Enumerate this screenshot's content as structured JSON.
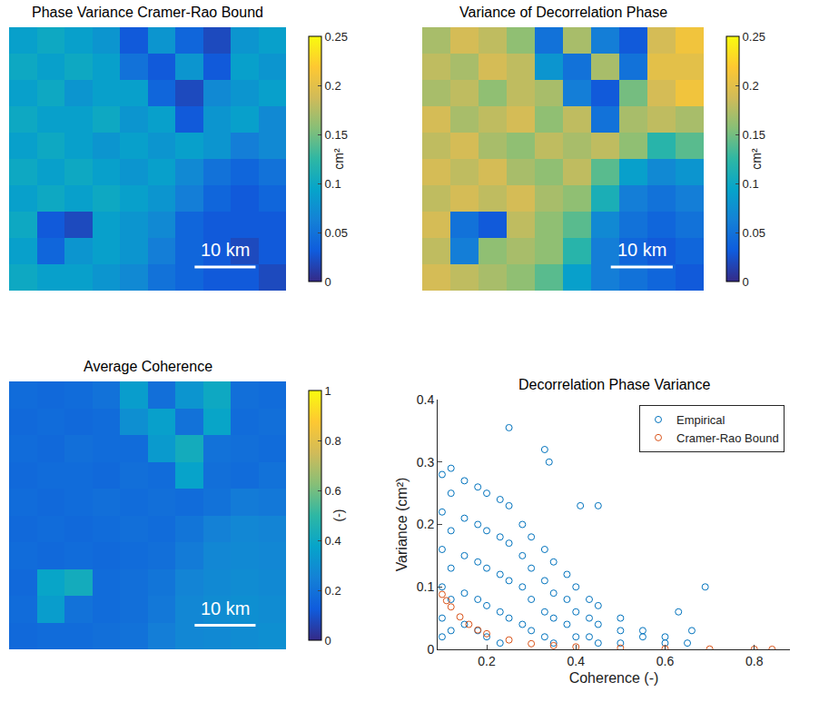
{
  "chart_data": [
    {
      "type": "heatmap",
      "title": "Phase Variance Cramer-Rao Bound",
      "tick_labels": false,
      "colorbar_range": [
        0,
        0.25
      ],
      "colorbar_ticks": [
        0,
        0.05,
        0.1,
        0.15,
        0.2,
        0.25
      ],
      "colorbar_label": "cm²",
      "annotations": [
        "10 km"
      ],
      "cells": [
        [
          0.09,
          0.1,
          0.09,
          0.08,
          0.03,
          0.08,
          0.04,
          0.02,
          0.08,
          0.09
        ],
        [
          0.1,
          0.09,
          0.1,
          0.09,
          0.05,
          0.03,
          0.08,
          0.03,
          0.09,
          0.08
        ],
        [
          0.09,
          0.1,
          0.08,
          0.09,
          0.09,
          0.04,
          0.02,
          0.07,
          0.08,
          0.09
        ],
        [
          0.1,
          0.09,
          0.09,
          0.1,
          0.08,
          0.09,
          0.03,
          0.08,
          0.09,
          0.07
        ],
        [
          0.09,
          0.1,
          0.09,
          0.08,
          0.09,
          0.08,
          0.09,
          0.08,
          0.06,
          0.07
        ],
        [
          0.1,
          0.09,
          0.1,
          0.09,
          0.08,
          0.09,
          0.07,
          0.05,
          0.04,
          0.05
        ],
        [
          0.09,
          0.1,
          0.09,
          0.1,
          0.09,
          0.08,
          0.06,
          0.04,
          0.03,
          0.04
        ],
        [
          0.1,
          0.03,
          0.02,
          0.09,
          0.08,
          0.07,
          0.04,
          0.03,
          0.03,
          0.03
        ],
        [
          0.09,
          0.04,
          0.08,
          0.09,
          0.08,
          0.06,
          0.04,
          0.03,
          0.02,
          0.03
        ],
        [
          0.1,
          0.09,
          0.09,
          0.08,
          0.07,
          0.05,
          0.04,
          0.03,
          0.03,
          0.02
        ]
      ]
    },
    {
      "type": "heatmap",
      "title": "Variance of Decorrelation Phase",
      "tick_labels": false,
      "colorbar_range": [
        0,
        0.25
      ],
      "colorbar_ticks": [
        0,
        0.05,
        0.1,
        0.15,
        0.2,
        0.25
      ],
      "colorbar_label": "cm²",
      "annotations": [
        "10 km"
      ],
      "cells": [
        [
          0.17,
          0.19,
          0.18,
          0.16,
          0.05,
          0.17,
          0.06,
          0.03,
          0.19,
          0.21
        ],
        [
          0.18,
          0.17,
          0.19,
          0.18,
          0.08,
          0.05,
          0.17,
          0.05,
          0.2,
          0.2
        ],
        [
          0.17,
          0.18,
          0.16,
          0.18,
          0.17,
          0.06,
          0.03,
          0.15,
          0.19,
          0.21
        ],
        [
          0.19,
          0.17,
          0.18,
          0.19,
          0.16,
          0.18,
          0.05,
          0.17,
          0.18,
          0.17
        ],
        [
          0.18,
          0.19,
          0.17,
          0.16,
          0.18,
          0.17,
          0.18,
          0.16,
          0.12,
          0.14
        ],
        [
          0.19,
          0.18,
          0.19,
          0.17,
          0.16,
          0.18,
          0.14,
          0.09,
          0.07,
          0.08
        ],
        [
          0.18,
          0.19,
          0.18,
          0.19,
          0.17,
          0.16,
          0.11,
          0.06,
          0.05,
          0.06
        ],
        [
          0.19,
          0.05,
          0.03,
          0.18,
          0.16,
          0.14,
          0.07,
          0.05,
          0.04,
          0.05
        ],
        [
          0.18,
          0.06,
          0.16,
          0.17,
          0.16,
          0.12,
          0.06,
          0.04,
          0.03,
          0.04
        ],
        [
          0.19,
          0.18,
          0.17,
          0.16,
          0.14,
          0.09,
          0.06,
          0.05,
          0.04,
          0.03
        ]
      ]
    },
    {
      "type": "heatmap",
      "title": "Average Coherence",
      "tick_labels": false,
      "colorbar_range": [
        0,
        1
      ],
      "colorbar_ticks": [
        0,
        0.2,
        0.4,
        0.6,
        0.8,
        1
      ],
      "colorbar_label": "(-)",
      "annotations": [
        "10 km"
      ],
      "cells": [
        [
          0.18,
          0.17,
          0.18,
          0.2,
          0.35,
          0.19,
          0.32,
          0.4,
          0.19,
          0.18
        ],
        [
          0.17,
          0.18,
          0.17,
          0.18,
          0.3,
          0.36,
          0.2,
          0.38,
          0.18,
          0.19
        ],
        [
          0.18,
          0.17,
          0.19,
          0.18,
          0.18,
          0.34,
          0.42,
          0.2,
          0.19,
          0.18
        ],
        [
          0.17,
          0.18,
          0.18,
          0.17,
          0.19,
          0.18,
          0.37,
          0.19,
          0.18,
          0.2
        ],
        [
          0.18,
          0.17,
          0.18,
          0.19,
          0.18,
          0.19,
          0.18,
          0.2,
          0.23,
          0.22
        ],
        [
          0.17,
          0.18,
          0.17,
          0.18,
          0.19,
          0.18,
          0.21,
          0.25,
          0.27,
          0.26
        ],
        [
          0.18,
          0.17,
          0.18,
          0.17,
          0.18,
          0.19,
          0.23,
          0.27,
          0.28,
          0.27
        ],
        [
          0.17,
          0.38,
          0.42,
          0.18,
          0.19,
          0.21,
          0.26,
          0.28,
          0.29,
          0.28
        ],
        [
          0.18,
          0.35,
          0.2,
          0.18,
          0.19,
          0.22,
          0.27,
          0.29,
          0.3,
          0.29
        ],
        [
          0.17,
          0.18,
          0.18,
          0.19,
          0.2,
          0.24,
          0.27,
          0.28,
          0.29,
          0.3
        ]
      ]
    },
    {
      "type": "scatter",
      "title": "Decorrelation Phase Variance",
      "x_label": "Coherence (-)",
      "y_label": "Variance (cm²)",
      "xlim": [
        0.09,
        0.88
      ],
      "xticks": [
        0.2,
        0.4,
        0.6,
        0.8
      ],
      "ylim": [
        0,
        0.4
      ],
      "yticks": [
        0,
        0.1,
        0.2,
        0.3,
        0.4
      ],
      "legend": "top right",
      "series": [
        {
          "name": "Empirical",
          "color": "#0072bd",
          "marker": "open circle",
          "x": [
            0.1,
            0.1,
            0.1,
            0.1,
            0.1,
            0.1,
            0.12,
            0.12,
            0.12,
            0.12,
            0.12,
            0.12,
            0.15,
            0.15,
            0.15,
            0.15,
            0.15,
            0.18,
            0.18,
            0.18,
            0.18,
            0.18,
            0.2,
            0.2,
            0.2,
            0.2,
            0.2,
            0.23,
            0.23,
            0.23,
            0.23,
            0.23,
            0.25,
            0.25,
            0.25,
            0.25,
            0.28,
            0.28,
            0.28,
            0.28,
            0.3,
            0.3,
            0.3,
            0.3,
            0.33,
            0.33,
            0.33,
            0.33,
            0.35,
            0.35,
            0.35,
            0.35,
            0.38,
            0.38,
            0.38,
            0.4,
            0.4,
            0.4,
            0.43,
            0.43,
            0.43,
            0.45,
            0.45,
            0.45,
            0.5,
            0.5,
            0.5,
            0.55,
            0.55,
            0.6,
            0.6,
            0.65,
            0.25,
            0.33,
            0.34,
            0.41,
            0.45,
            0.69,
            0.63,
            0.66
          ],
          "values": [
            0.28,
            0.22,
            0.16,
            0.1,
            0.05,
            0.02,
            0.29,
            0.25,
            0.19,
            0.13,
            0.08,
            0.03,
            0.27,
            0.21,
            0.15,
            0.09,
            0.04,
            0.26,
            0.2,
            0.14,
            0.08,
            0.03,
            0.25,
            0.19,
            0.13,
            0.07,
            0.02,
            0.24,
            0.18,
            0.12,
            0.06,
            0.01,
            0.23,
            0.17,
            0.11,
            0.05,
            0.2,
            0.15,
            0.1,
            0.04,
            0.18,
            0.13,
            0.08,
            0.03,
            0.16,
            0.11,
            0.06,
            0.02,
            0.14,
            0.09,
            0.05,
            0.01,
            0.12,
            0.08,
            0.04,
            0.1,
            0.06,
            0.02,
            0.08,
            0.05,
            0.02,
            0.07,
            0.04,
            0.01,
            0.05,
            0.03,
            0.01,
            0.03,
            0.02,
            0.02,
            0.01,
            0.01,
            0.355,
            0.32,
            0.3,
            0.23,
            0.23,
            0.1,
            0.06,
            0.03
          ]
        },
        {
          "name": "Cramer-Rao Bound",
          "color": "#d95319",
          "marker": "open circle",
          "x": [
            0.1,
            0.11,
            0.12,
            0.14,
            0.16,
            0.18,
            0.2,
            0.25,
            0.3,
            0.35,
            0.4,
            0.5,
            0.6,
            0.7,
            0.8,
            0.84
          ],
          "values": [
            0.088,
            0.078,
            0.068,
            0.052,
            0.04,
            0.031,
            0.025,
            0.015,
            0.009,
            0.006,
            0.004,
            0.002,
            0.001,
            0.0005,
            0.0002,
            0.0001
          ]
        }
      ]
    }
  ]
}
